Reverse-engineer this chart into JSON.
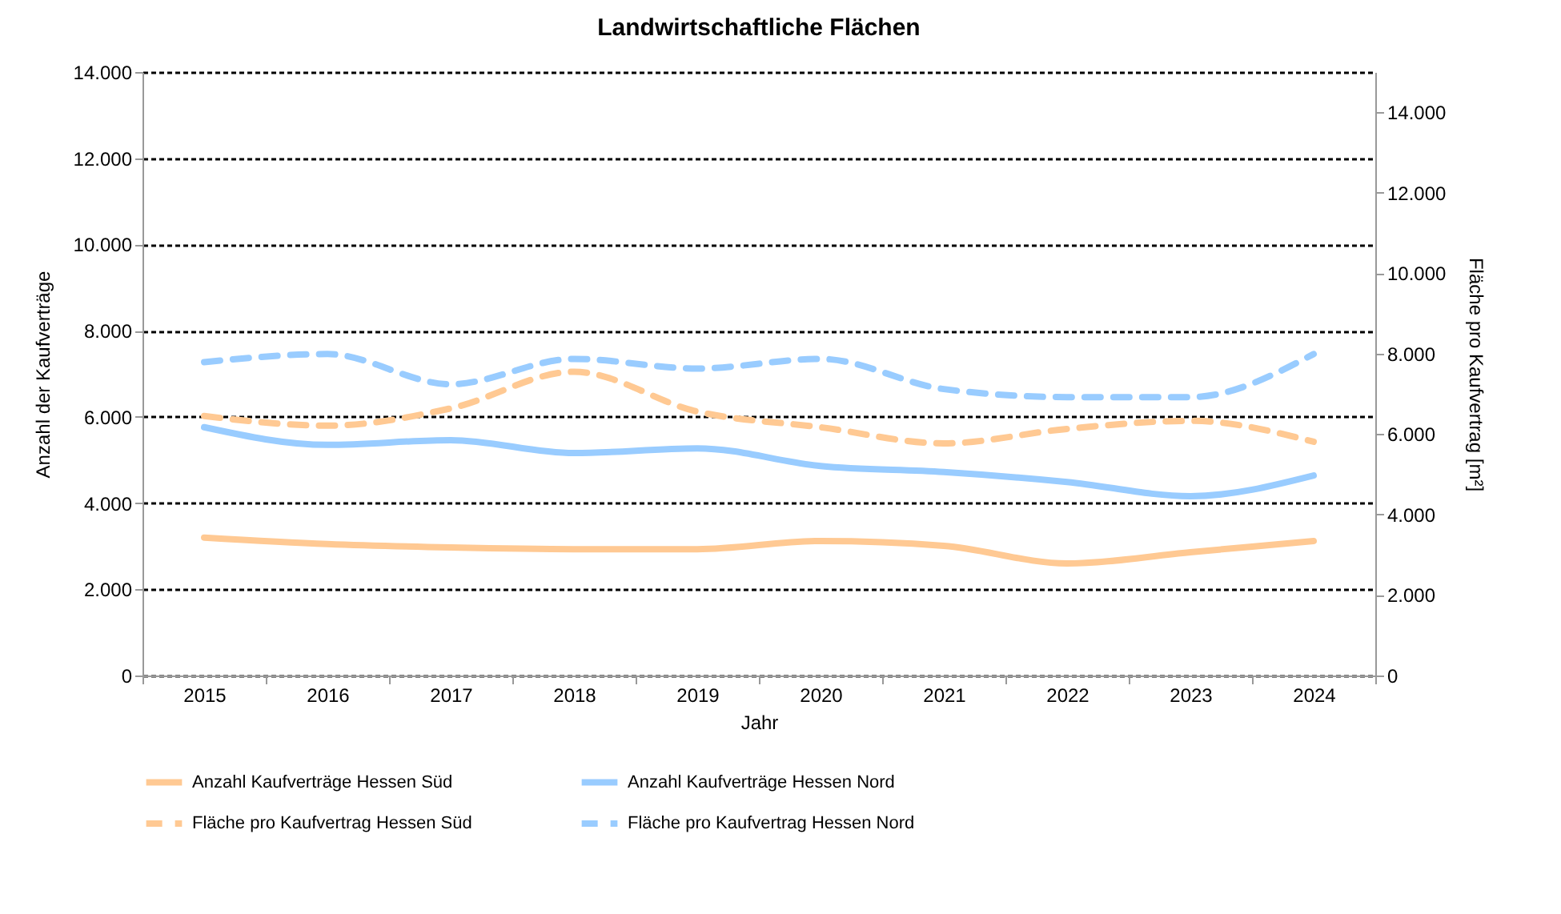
{
  "chart_data": {
    "type": "line",
    "title": "Landwirtschaftliche Flächen",
    "xlabel": "Jahr",
    "ylabel": "Anzahl der Kaufverträge",
    "y2label": "Fläche pro Kaufvertrag [m²]",
    "categories": [
      "2015",
      "2016",
      "2017",
      "2018",
      "2019",
      "2020",
      "2021",
      "2022",
      "2023",
      "2024"
    ],
    "series": [
      {
        "name": "Anzahl Kaufverträge Hessen Süd",
        "color": "#ffc993",
        "line_style": "solid",
        "values": [
          3200,
          3050,
          2970,
          2930,
          2930,
          3120,
          3010,
          2600,
          2860,
          3120
        ]
      },
      {
        "name": "Anzahl Kaufverträge Hessen Nord",
        "color": "#99ccff",
        "line_style": "solid",
        "values": [
          5760,
          5350,
          5460,
          5160,
          5270,
          4860,
          4720,
          4490,
          4160,
          4640
        ]
      },
      {
        "name": "Fläche pro Kaufvertrag Hessen Süd",
        "color": "#ffc993",
        "line_style": "dashed",
        "axis": "y2",
        "values": [
          6450,
          6210,
          6640,
          7550,
          6560,
          6170,
          5770,
          6130,
          6330,
          5810
        ]
      },
      {
        "name": "Fläche pro Kaufvertrag Hessen Nord",
        "color": "#99ccff",
        "line_style": "dashed",
        "axis": "y2",
        "values": [
          7790,
          7990,
          7240,
          7870,
          7630,
          7870,
          7120,
          6920,
          6920,
          7990
        ]
      }
    ],
    "ylim": [
      0,
      14000
    ],
    "yticks": [
      0,
      {
        "value": 2000,
        "label": "2.000"
      },
      {
        "value": 4000,
        "label": "4.000"
      },
      {
        "value": 6000,
        "label": "6.000"
      },
      {
        "value": 8000,
        "label": "8.000"
      },
      {
        "value": 10000,
        "label": "10.000"
      },
      {
        "value": 12000,
        "label": "12.000"
      },
      {
        "value": 14000,
        "label": "14.000"
      }
    ],
    "y2lim": [
      0,
      15000
    ],
    "y2ticks": [
      0,
      {
        "value": 2000,
        "label": "2.000"
      },
      {
        "value": 4000,
        "label": "4.000"
      },
      {
        "value": 6000,
        "label": "6.000"
      },
      {
        "value": 8000,
        "label": "8.000"
      },
      {
        "value": 10000,
        "label": "10.000"
      },
      {
        "value": 12000,
        "label": "12.000"
      },
      {
        "value": 14000,
        "label": "14.000"
      }
    ],
    "grid": "y",
    "legend": "bottom"
  }
}
